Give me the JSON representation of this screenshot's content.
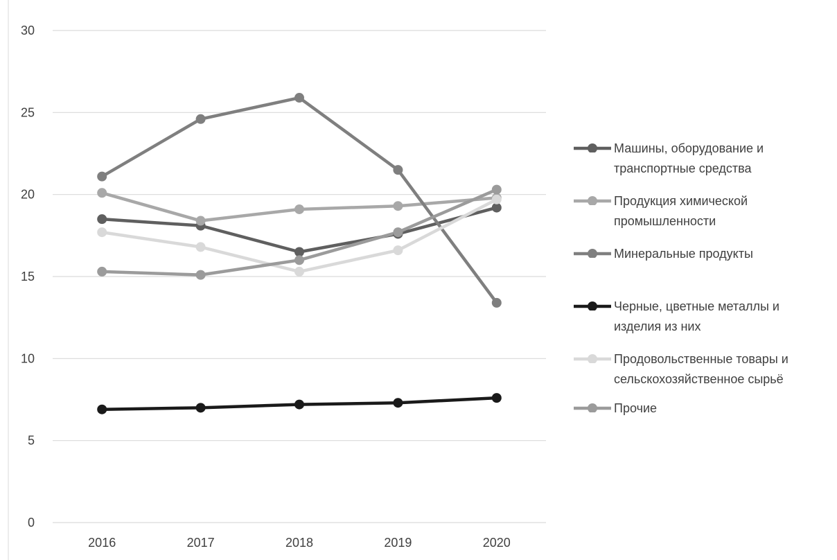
{
  "chart_data": {
    "type": "line",
    "title": "",
    "xlabel": "",
    "ylabel": "",
    "categories": [
      "2016",
      "2017",
      "2018",
      "2019",
      "2020"
    ],
    "ylim": [
      0,
      30
    ],
    "yticks": [
      "0",
      "5",
      "10",
      "15",
      "20",
      "25",
      "30"
    ],
    "grid": true,
    "legend_position": "right",
    "series": [
      {
        "name": "Машины, оборудование и\nтранспортные средства",
        "color": "#5f5f5f",
        "values": [
          18.5,
          18.1,
          16.5,
          17.6,
          19.2
        ]
      },
      {
        "name": "Продукция химической\nпромышленности",
        "color": "#a8a8a8",
        "values": [
          20.1,
          18.4,
          19.1,
          19.3,
          19.8
        ]
      },
      {
        "name": "Минеральные продукты",
        "color": "#7f7f7f",
        "values": [
          21.1,
          24.6,
          25.9,
          21.5,
          13.4
        ]
      },
      {
        "name": "Черные, цветные металлы и\nизделия из них",
        "color": "#1a1a1a",
        "values": [
          6.9,
          7.0,
          7.2,
          7.3,
          7.6
        ]
      },
      {
        "name": "Продовольственные товары и\nсельскохозяйственное сырьё",
        "color": "#d9d9d9",
        "values": [
          17.7,
          16.8,
          15.3,
          16.6,
          19.7
        ]
      },
      {
        "name": "Прочие",
        "color": "#9b9b9b",
        "values": [
          15.3,
          15.1,
          16.0,
          17.7,
          20.3
        ]
      }
    ]
  }
}
